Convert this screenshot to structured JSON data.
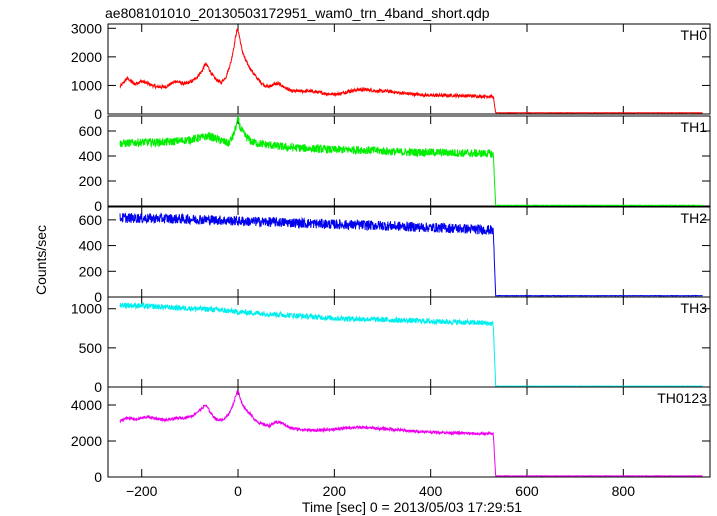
{
  "chart_data": {
    "type": "line",
    "title": "ae808101010_20130503172951_wam0_trn_4band_short.qdp",
    "xlabel": "Time [sec] 0 = 2013/05/03 17:29:51",
    "ylabel": "Counts/sec",
    "xlim": [
      -270,
      980
    ],
    "x_ticks": [
      -200,
      0,
      200,
      400,
      600,
      800
    ],
    "x_tick_labels": [
      "−200",
      "0",
      "200",
      "400",
      "600",
      "800"
    ],
    "grid": false,
    "panels": [
      {
        "name": "TH0",
        "color": "#ff0000",
        "ylim": [
          0,
          3150
        ],
        "y_ticks": [
          0,
          1000,
          2000,
          3000
        ],
        "x": [
          -245,
          -230,
          -215,
          -200,
          -185,
          -170,
          -150,
          -130,
          -110,
          -95,
          -85,
          -75,
          -68,
          -62,
          -55,
          -45,
          -35,
          -25,
          -15,
          -8,
          -3,
          0,
          3,
          8,
          15,
          25,
          35,
          45,
          55,
          65,
          75,
          85,
          95,
          110,
          130,
          150,
          170,
          190,
          210,
          230,
          250,
          270,
          290,
          310,
          330,
          360,
          400,
          450,
          500,
          525,
          530,
          535,
          600,
          700,
          800,
          965
        ],
        "y": [
          950,
          1250,
          1050,
          1150,
          1050,
          950,
          950,
          1150,
          1050,
          1150,
          1300,
          1500,
          1750,
          1650,
          1400,
          1200,
          1100,
          1300,
          1800,
          2400,
          2900,
          2950,
          2700,
          2250,
          1900,
          1600,
          1350,
          1150,
          1000,
          950,
          1050,
          1050,
          950,
          800,
          800,
          800,
          750,
          700,
          700,
          800,
          850,
          850,
          800,
          800,
          750,
          700,
          650,
          650,
          620,
          620,
          600,
          40,
          40,
          40,
          40,
          40
        ]
      },
      {
        "name": "TH1",
        "color": "#00ee00",
        "ylim": [
          0,
          720
        ],
        "y_ticks": [
          0,
          200,
          400,
          600
        ],
        "x": [
          -245,
          -200,
          -150,
          -100,
          -60,
          -40,
          -20,
          -10,
          -3,
          0,
          5,
          15,
          30,
          60,
          100,
          150,
          200,
          250,
          300,
          350,
          400,
          450,
          500,
          525,
          530,
          535,
          600,
          700,
          800,
          965
        ],
        "y": [
          500,
          510,
          510,
          530,
          560,
          530,
          500,
          560,
          650,
          700,
          620,
          560,
          510,
          490,
          470,
          460,
          450,
          450,
          440,
          430,
          430,
          425,
          420,
          420,
          410,
          5,
          5,
          5,
          5,
          5
        ]
      },
      {
        "name": "TH2",
        "color": "#0000ee",
        "ylim": [
          0,
          700
        ],
        "y_ticks": [
          0,
          200,
          400,
          600
        ],
        "x": [
          -245,
          -150,
          -50,
          0,
          100,
          200,
          300,
          400,
          450,
          500,
          525,
          530,
          535,
          600,
          700,
          800,
          965
        ],
        "y": [
          615,
          610,
          600,
          590,
          580,
          565,
          555,
          540,
          535,
          525,
          520,
          510,
          10,
          10,
          10,
          10,
          10
        ]
      },
      {
        "name": "TH3",
        "color": "#00eeee",
        "ylim": [
          0,
          1150
        ],
        "y_ticks": [
          0,
          500,
          1000
        ],
        "x": [
          -245,
          -150,
          -50,
          0,
          100,
          200,
          300,
          400,
          500,
          525,
          530,
          535,
          600,
          700,
          800,
          965
        ],
        "y": [
          1050,
          1020,
          990,
          960,
          920,
          880,
          860,
          840,
          820,
          810,
          800,
          10,
          10,
          10,
          10,
          10
        ]
      },
      {
        "name": "TH0123",
        "color": "#ee00ee",
        "ylim": [
          0,
          5000
        ],
        "y_ticks": [
          0,
          2000,
          4000
        ],
        "x": [
          -245,
          -230,
          -210,
          -190,
          -170,
          -150,
          -130,
          -110,
          -95,
          -85,
          -75,
          -68,
          -62,
          -55,
          -45,
          -35,
          -25,
          -15,
          -8,
          -3,
          0,
          3,
          8,
          15,
          25,
          35,
          45,
          55,
          65,
          75,
          85,
          95,
          110,
          130,
          150,
          170,
          200,
          230,
          260,
          290,
          320,
          360,
          400,
          450,
          500,
          525,
          530,
          535,
          600,
          700,
          800,
          965
        ],
        "y": [
          3100,
          3300,
          3200,
          3350,
          3250,
          3150,
          3250,
          3300,
          3400,
          3600,
          3800,
          4000,
          3800,
          3500,
          3200,
          3150,
          3300,
          3700,
          4200,
          4700,
          4800,
          4500,
          4100,
          3800,
          3500,
          3200,
          3000,
          2900,
          2850,
          3000,
          3050,
          2950,
          2700,
          2650,
          2600,
          2600,
          2650,
          2750,
          2750,
          2700,
          2650,
          2550,
          2500,
          2450,
          2400,
          2400,
          2380,
          60,
          60,
          60,
          60,
          60
        ]
      }
    ]
  }
}
